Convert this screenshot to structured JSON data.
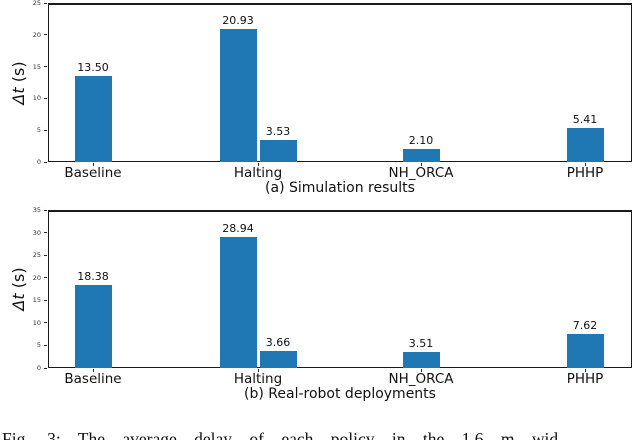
{
  "colors": {
    "bar": "#1f77b4",
    "spine": "#1a1a1a",
    "text": "#111111"
  },
  "chart_data": [
    {
      "type": "bar",
      "title": "(a) Simulation results",
      "xlabel": "",
      "ylabel": "Δt (s)",
      "ylabel_math": "Δt",
      "ylabel_suffix": " (s)",
      "ylim": [
        0,
        25
      ],
      "yticks": [
        0,
        5,
        10,
        15,
        20,
        25
      ],
      "grid": false,
      "legend": null,
      "categories": [
        "Baseline",
        "Halting",
        "NH_ORCA",
        "PHHP"
      ],
      "bar_color": "#1f77b4",
      "bars": [
        {
          "category": "Baseline",
          "slot": "center",
          "value": 13.5,
          "label": "13.50"
        },
        {
          "category": "Halting",
          "slot": "left",
          "value": 20.93,
          "label": "20.93"
        },
        {
          "category": "Halting",
          "slot": "right",
          "value": 3.53,
          "label": "3.53"
        },
        {
          "category": "NH_ORCA",
          "slot": "center",
          "value": 2.1,
          "label": "2.10"
        },
        {
          "category": "PHHP",
          "slot": "center",
          "value": 5.41,
          "label": "5.41"
        }
      ]
    },
    {
      "type": "bar",
      "title": "(b) Real-robot deployments",
      "xlabel": "",
      "ylabel": "Δt (s)",
      "ylabel_math": "Δt",
      "ylabel_suffix": " (s)",
      "ylim": [
        0,
        35
      ],
      "yticks": [
        0,
        5,
        10,
        15,
        20,
        25,
        30,
        35
      ],
      "grid": false,
      "legend": null,
      "categories": [
        "Baseline",
        "Halting",
        "NH_ORCA",
        "PHHP"
      ],
      "bar_color": "#1f77b4",
      "bars": [
        {
          "category": "Baseline",
          "slot": "center",
          "value": 18.38,
          "label": "18.38"
        },
        {
          "category": "Halting",
          "slot": "left",
          "value": 28.94,
          "label": "28.94"
        },
        {
          "category": "Halting",
          "slot": "right",
          "value": 3.66,
          "label": "3.66"
        },
        {
          "category": "NH_ORCA",
          "slot": "center",
          "value": 3.51,
          "label": "3.51"
        },
        {
          "category": "PHHP",
          "slot": "center",
          "value": 7.62,
          "label": "7.62"
        }
      ]
    }
  ],
  "figure_caption": "Fig. 3: The average delay of each policy in the 1.6 m wid"
}
